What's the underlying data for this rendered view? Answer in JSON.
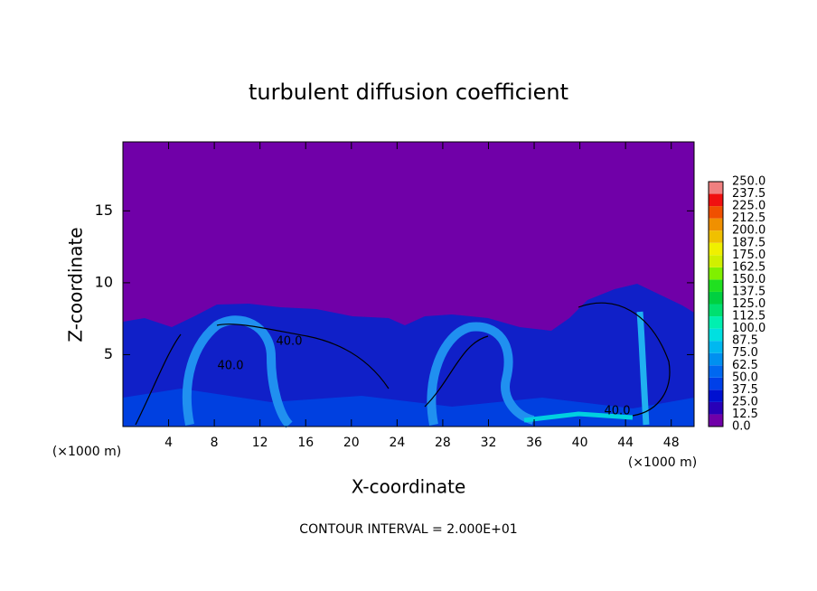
{
  "chart_data": {
    "type": "contour",
    "title": "turbulent diffusion coefficient",
    "xlabel": "X-coordinate",
    "ylabel": "Z-coordinate",
    "x_unit_label": "(×1000 m)",
    "annotation": "CONTOUR INTERVAL = 2.000E+01",
    "xlim": [
      0,
      50
    ],
    "xticks": [
      4,
      8,
      12,
      16,
      20,
      24,
      28,
      32,
      36,
      40,
      44,
      48
    ],
    "ylim": [
      0,
      19.8
    ],
    "yticks": [
      5,
      10,
      15
    ],
    "contour_labels": [
      {
        "value": 40,
        "label": "40.0"
      },
      {
        "value": 40,
        "label": "40.0"
      },
      {
        "value": 40,
        "label": "40.0"
      }
    ],
    "colorbar": {
      "levels": [
        {
          "value": 0,
          "label": "0.0"
        },
        {
          "value": 12.5,
          "label": "12.5"
        },
        {
          "value": 25,
          "label": "25.0"
        },
        {
          "value": 37.5,
          "label": "37.5"
        },
        {
          "value": 50,
          "label": "50.0"
        },
        {
          "value": 62.5,
          "label": "62.5"
        },
        {
          "value": 75,
          "label": "75.0"
        },
        {
          "value": 87.5,
          "label": "87.5"
        },
        {
          "value": 100,
          "label": "100.0"
        },
        {
          "value": 112.5,
          "label": "112.5"
        },
        {
          "value": 125,
          "label": "125.0"
        },
        {
          "value": 137.5,
          "label": "137.5"
        },
        {
          "value": 150,
          "label": "150.0"
        },
        {
          "value": 162.5,
          "label": "162.5"
        },
        {
          "value": 175,
          "label": "175.0"
        },
        {
          "value": 187.5,
          "label": "187.5"
        },
        {
          "value": 200,
          "label": "200.0"
        },
        {
          "value": 212.5,
          "label": "212.5"
        },
        {
          "value": 225,
          "label": "225.0"
        },
        {
          "value": 237.5,
          "label": "237.5"
        },
        {
          "value": 250,
          "label": "250.0"
        }
      ],
      "colors": [
        "#7000a8",
        "#2800b8",
        "#0010d0",
        "#0040e8",
        "#0068f0",
        "#0090f0",
        "#00b8f0",
        "#00e0e0",
        "#00f0b0",
        "#00e070",
        "#00d040",
        "#20e020",
        "#80f000",
        "#d0f000",
        "#f0f000",
        "#f0c000",
        "#f09000",
        "#f05000",
        "#f01010",
        "#f08080"
      ]
    }
  }
}
